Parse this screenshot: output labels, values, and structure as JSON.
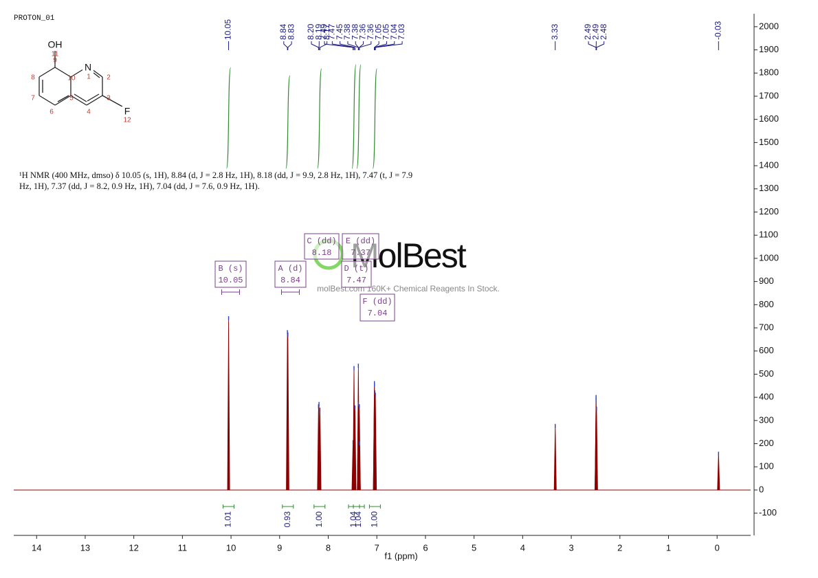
{
  "header": "PROTON_01",
  "molecule": {
    "atoms": [
      "OH",
      "11",
      "N",
      "1",
      "2",
      "3",
      "F",
      "12",
      "4",
      "5",
      "10",
      "6",
      "7",
      "8",
      "9"
    ]
  },
  "nmr_text": "¹H NMR (400 MHz, dmso) δ 10.05 (s, 1H), 8.84 (d, J = 2.8 Hz, 1H), 8.18 (dd, J = 9.9, 2.8 Hz, 1H), 7.47 (t, J = 7.9 Hz, 1H), 7.37 (dd, J = 8.2, 0.9 Hz, 1H), 7.04 (dd, J = 7.6, 0.9 Hz, 1H).",
  "watermark": {
    "brand": "MolBest",
    "tagline": "molBest.com 160K+ Chemical Reagents In Stock."
  },
  "multiplets": [
    {
      "name": "B (s)",
      "shift": "10.05"
    },
    {
      "name": "A (d)",
      "shift": "8.84"
    },
    {
      "name": "C (dd)",
      "shift": "8.18"
    },
    {
      "name": "E (dd)",
      "shift": "7.37"
    },
    {
      "name": "D (t)",
      "shift": "7.47"
    },
    {
      "name": "F (dd)",
      "shift": "7.04"
    }
  ],
  "chart_data": {
    "type": "nmr",
    "x_label": "f1 (ppm)",
    "xlim": [
      14.47,
      -0.69
    ],
    "xticks": [
      14,
      13,
      12,
      11,
      10,
      9,
      8,
      7,
      6,
      5,
      4,
      3,
      2,
      1,
      0
    ],
    "ylim": [
      -196,
      2056
    ],
    "yticks": [
      -100,
      0,
      100,
      200,
      300,
      400,
      500,
      600,
      700,
      800,
      900,
      1000,
      1100,
      1200,
      1300,
      1400,
      1500,
      1600,
      1700,
      1800,
      1900,
      2000
    ],
    "color": "#8b0000",
    "peaks": {
      "x": [
        10.05,
        8.84,
        8.83,
        8.2,
        8.19,
        8.17,
        7.49,
        7.47,
        7.45,
        7.38,
        7.38,
        7.36,
        7.36,
        7.05,
        7.05,
        7.04,
        7.03,
        3.33,
        2.49,
        2.49,
        2.48,
        -0.03
      ],
      "x_labels": [
        "10.05",
        "8.84",
        "8.83",
        "8.20",
        "8.19",
        "8.17",
        "7.49",
        "7.47",
        "7.45",
        "7.38",
        "7.38",
        "7.36",
        "7.36",
        "7.05",
        "7.05",
        "7.04",
        "7.03",
        "3.33",
        "2.49",
        "2.49",
        "2.48",
        "-0.03"
      ],
      "values": [
        750,
        690,
        680,
        370,
        380,
        355,
        215,
        535,
        365,
        545,
        380,
        370,
        210,
        470,
        460,
        430,
        420,
        285,
        410,
        395,
        360,
        165
      ]
    },
    "integrals": {
      "x": [
        10.05,
        8.83,
        8.18,
        7.47,
        7.37,
        7.04
      ],
      "values": [
        1.01,
        0.93,
        1.0,
        1.04,
        1.04,
        1.0
      ],
      "value_labels": [
        "1.01",
        "0.93",
        "1.00",
        "1.04",
        "1.04",
        "1.00"
      ],
      "color": "#2e8b2e"
    }
  }
}
